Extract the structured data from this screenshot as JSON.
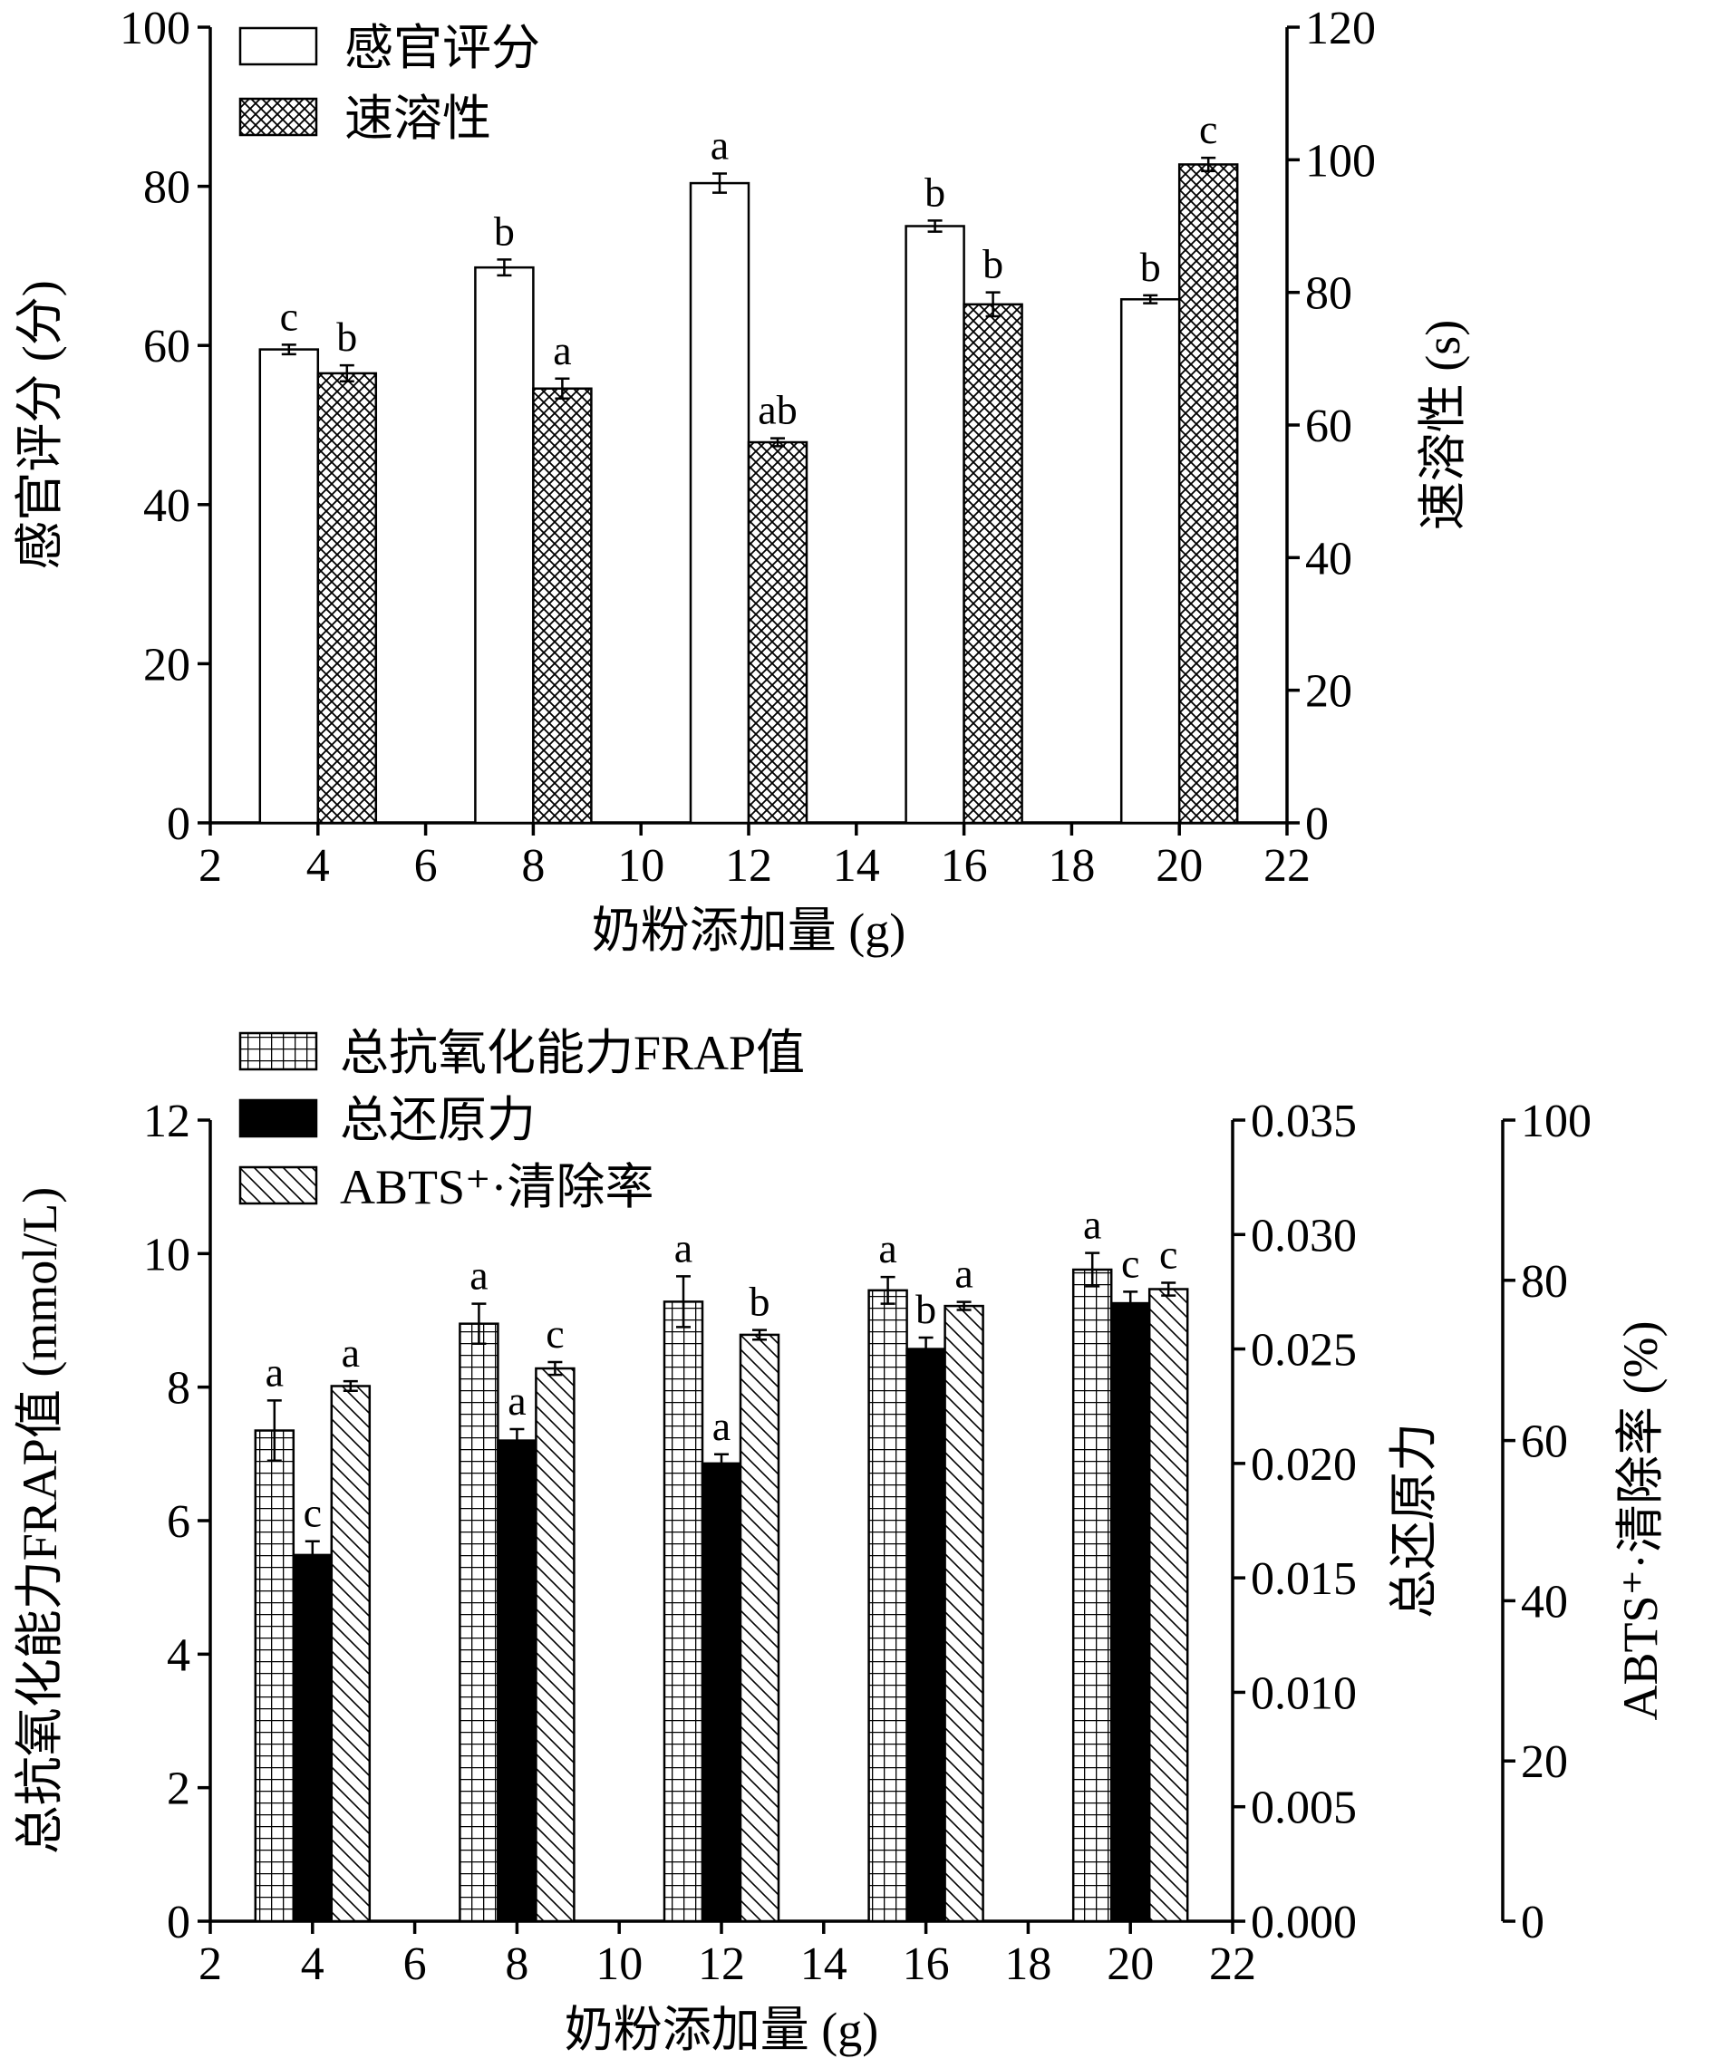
{
  "chart_data": [
    {
      "type": "bar",
      "x_label": "奶粉添加量 (g)",
      "xlim": [
        2,
        22
      ],
      "x_ticks": [
        2,
        4,
        6,
        8,
        10,
        12,
        14,
        16,
        18,
        20,
        22
      ],
      "categories": [
        4,
        8,
        12,
        16,
        20
      ],
      "axes": [
        {
          "id": "left",
          "label": "感官评分 (分)",
          "lim": [
            0,
            100
          ],
          "ticks": [
            0,
            20,
            40,
            60,
            80,
            100
          ],
          "decimals": 0
        },
        {
          "id": "right1",
          "label": "速溶性 (s)",
          "lim": [
            0,
            120
          ],
          "ticks": [
            0,
            20,
            40,
            60,
            80,
            100,
            120
          ],
          "decimals": 0
        }
      ],
      "series": [
        {
          "name": "感官评分",
          "axis": "left",
          "pattern": "open",
          "values": [
            59.5,
            69.8,
            80.4,
            75.0,
            65.8
          ],
          "errors": [
            0.6,
            1.0,
            1.2,
            0.7,
            0.5
          ],
          "labels": [
            "c",
            "b",
            "a",
            "b",
            "b"
          ]
        },
        {
          "name": "速溶性",
          "axis": "right1",
          "pattern": "crosshatch",
          "values": [
            67.8,
            65.5,
            57.4,
            78.2,
            99.3
          ],
          "errors": [
            1.2,
            1.5,
            0.6,
            1.8,
            1.0
          ],
          "labels": [
            "b",
            "a",
            "ab",
            "b",
            "c"
          ]
        }
      ],
      "legend_position": "top-left"
    },
    {
      "type": "bar",
      "x_label": "奶粉添加量 (g)",
      "xlim": [
        2,
        22
      ],
      "x_ticks": [
        2,
        4,
        6,
        8,
        10,
        12,
        14,
        16,
        18,
        20,
        22
      ],
      "categories": [
        4,
        8,
        12,
        16,
        20
      ],
      "axes": [
        {
          "id": "left",
          "label": "总抗氧化能力FRAP值 (mmol/L)",
          "lim": [
            0,
            12
          ],
          "ticks": [
            0,
            2,
            4,
            6,
            8,
            10,
            12
          ],
          "decimals": 0
        },
        {
          "id": "right1",
          "label": "总还原力",
          "lim": [
            0,
            0.035
          ],
          "ticks": [
            0,
            0.005,
            0.01,
            0.015,
            0.02,
            0.025,
            0.03,
            0.035
          ],
          "decimals": 3
        },
        {
          "id": "right2",
          "label": "ABTS⁺·清除率 (%)",
          "lim": [
            0,
            100
          ],
          "ticks": [
            0,
            20,
            40,
            60,
            80,
            100
          ],
          "decimals": 0
        }
      ],
      "series": [
        {
          "name": "总抗氧化能力FRAP值",
          "axis": "left",
          "pattern": "grid",
          "values": [
            7.35,
            8.95,
            9.28,
            9.45,
            9.76
          ],
          "errors": [
            0.45,
            0.3,
            0.38,
            0.2,
            0.25
          ],
          "labels": [
            "a",
            "a",
            "a",
            "a",
            "a"
          ]
        },
        {
          "name": "总还原力",
          "axis": "right1",
          "pattern": "solid",
          "values": [
            0.016,
            0.021,
            0.02,
            0.025,
            0.027
          ],
          "errors": [
            0.0006,
            0.0005,
            0.0004,
            0.0005,
            0.0005
          ],
          "labels": [
            "c",
            "a",
            "a",
            "b",
            "c"
          ]
        },
        {
          "name": "ABTS⁺·清除率",
          "axis": "right2",
          "pattern": "diagonal",
          "values": [
            66.8,
            69.0,
            73.2,
            76.8,
            78.9
          ],
          "errors": [
            0.6,
            0.8,
            0.6,
            0.5,
            0.8
          ],
          "labels": [
            "a",
            "c",
            "b",
            "a",
            "c"
          ]
        }
      ],
      "legend_position": "top-left"
    }
  ]
}
